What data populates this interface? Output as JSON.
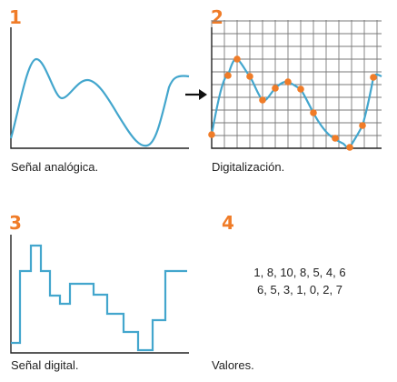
{
  "panels": [
    {
      "number": "1",
      "caption": "Señal analógica."
    },
    {
      "number": "2",
      "caption": "Digitalización."
    },
    {
      "number": "3",
      "caption": "Señal digital."
    },
    {
      "number": "4",
      "caption": "Valores.",
      "values_line1": "1, 8, 10, 8, 5, 4, 6",
      "values_line2": "6, 5, 3, 1, 0, 2, 7"
    }
  ],
  "colors": {
    "accent": "#f07c28",
    "signal": "#43a6cd",
    "axis": "#222222",
    "grid": "#7a7a7a"
  },
  "icons": {
    "arrow": "right-arrow-icon"
  }
}
